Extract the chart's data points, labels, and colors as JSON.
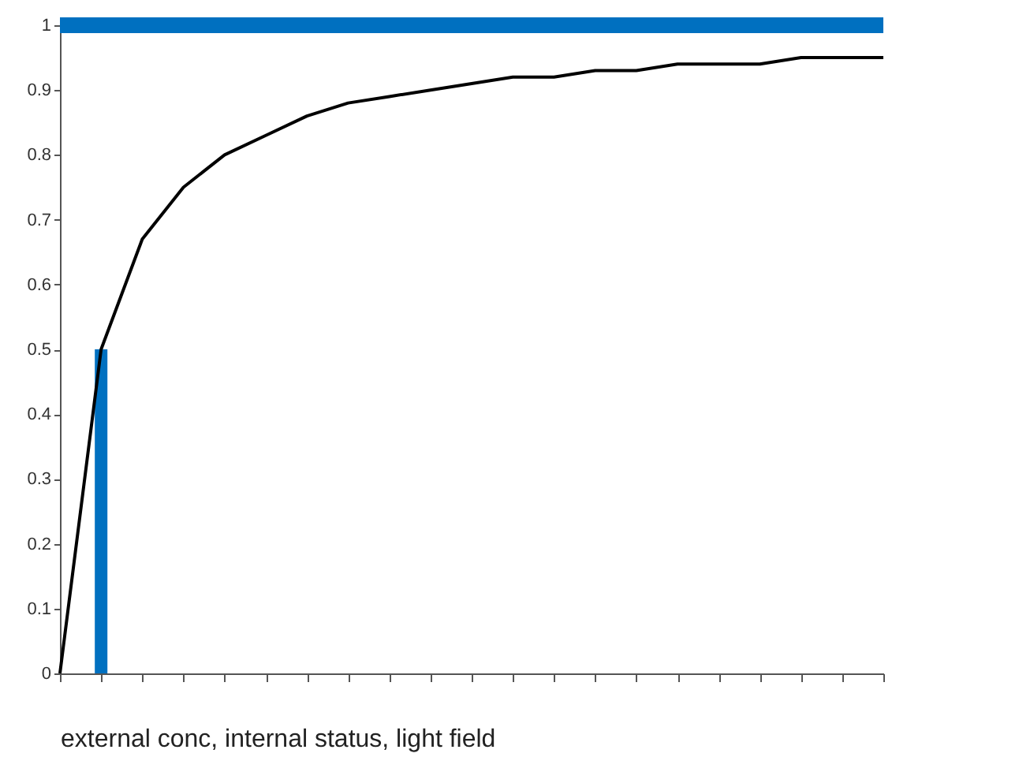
{
  "chart_data": {
    "type": "line",
    "xlabel": "external conc, internal status, light field",
    "categories": [
      null,
      null,
      null,
      null,
      null,
      null,
      null,
      null,
      null,
      null,
      null,
      null,
      null,
      null,
      null,
      null,
      null,
      null,
      null,
      null,
      null
    ],
    "series": [
      {
        "color": "#000000",
        "values": [
          0,
          0.5,
          0.67,
          0.75,
          0.8,
          0.83,
          0.86,
          0.88,
          0.89,
          0.9,
          0.91,
          0.92,
          0.92,
          0.93,
          0.93,
          0.94,
          0.94,
          0.94,
          0.95,
          0.95,
          0.95
        ]
      },
      {
        "type": "bar",
        "color": "#0070c0",
        "values": [
          null,
          0.5,
          null,
          null,
          null,
          null,
          null,
          null,
          null,
          null,
          null,
          null,
          null,
          null,
          null,
          null,
          null,
          null,
          null,
          null,
          null
        ]
      }
    ],
    "ylim": [
      0,
      1
    ],
    "yticks": [
      0,
      0.1,
      0.2,
      0.3,
      0.4,
      0.5,
      0.6,
      0.7,
      0.8,
      0.9,
      1
    ],
    "ref_lines": [
      {
        "axis": "y",
        "value": 1,
        "color": "#0070c0"
      }
    ],
    "grid": false,
    "marker": "none",
    "line_style": "solid"
  }
}
